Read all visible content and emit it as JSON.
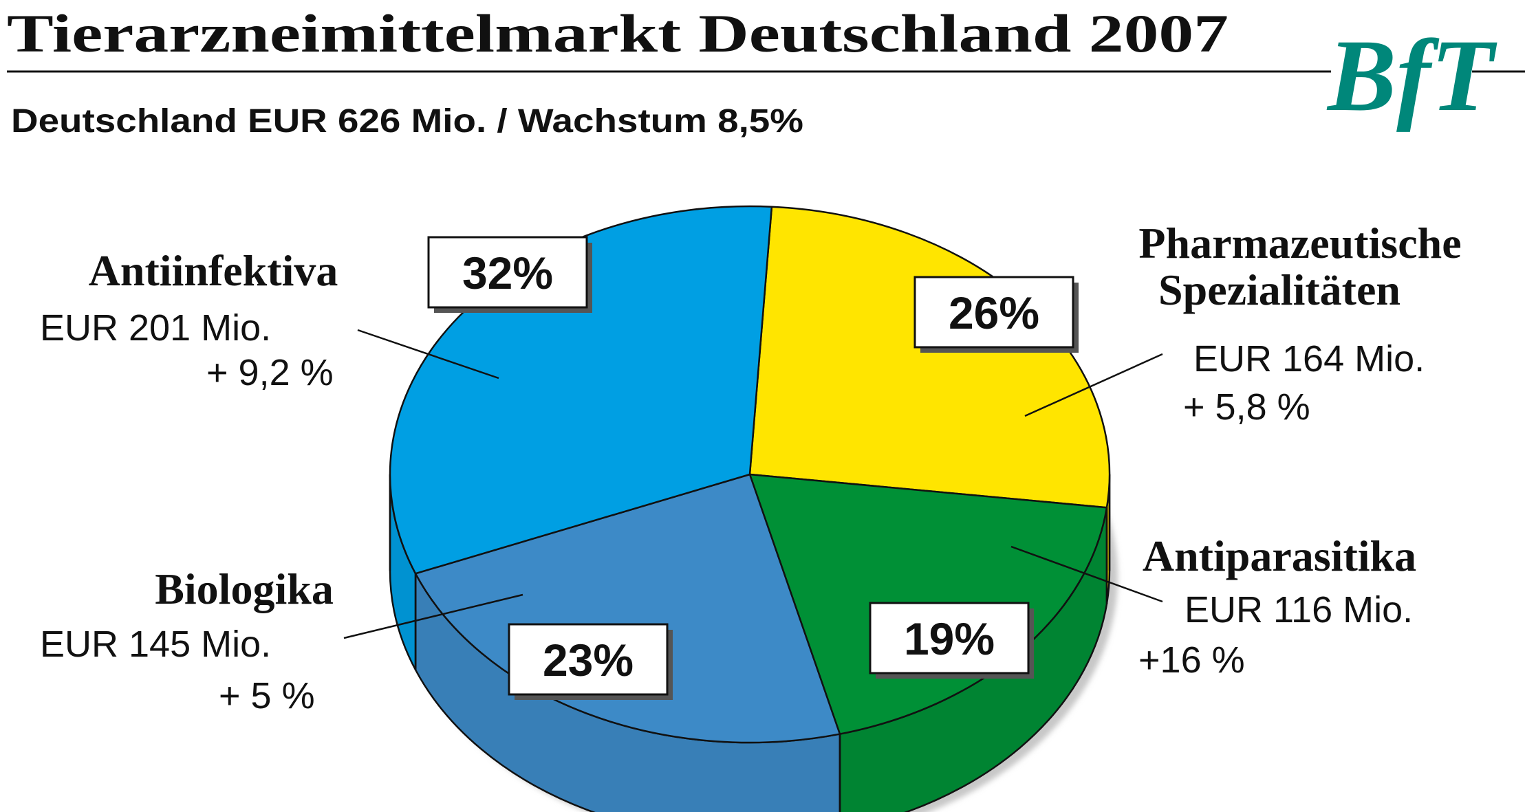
{
  "chart_data": {
    "type": "pie",
    "title": "Tierarzneimittelmarkt Deutschland 2007",
    "subtitle": "Deutschland EUR 626 Mio. / Wachstum 8,5%",
    "unit": "EUR Mio.",
    "slices": [
      {
        "name": "Antiinfektiva",
        "name_lines": [
          "Antiinfektiva"
        ],
        "percent": 32,
        "percent_label": "32%",
        "value": 201,
        "value_label": "EUR 201 Mio.",
        "growth_label": "+ 9,2 %",
        "color": "#009FE3"
      },
      {
        "name": "Pharmazeutische Spezialitäten",
        "name_lines": [
          "Pharmazeutische",
          "Spezialitäten"
        ],
        "percent": 26,
        "percent_label": "26%",
        "value": 164,
        "value_label": "EUR 164 Mio.",
        "growth_label": "+ 5,8 %",
        "color": "#FFE500"
      },
      {
        "name": "Antiparasitika",
        "name_lines": [
          "Antiparasitika"
        ],
        "percent": 19,
        "percent_label": "19%",
        "value": 116,
        "value_label": "EUR 116 Mio.",
        "growth_label": "+16 %",
        "color": "#009036"
      },
      {
        "name": "Biologika",
        "name_lines": [
          "Biologika"
        ],
        "percent": 23,
        "percent_label": "23%",
        "value": 145,
        "value_label": "EUR 145 Mio.",
        "growth_label": "+ 5 %",
        "color": "#3D8AC7"
      }
    ]
  },
  "logo": {
    "text": "BfT",
    "color": "#00877A"
  }
}
